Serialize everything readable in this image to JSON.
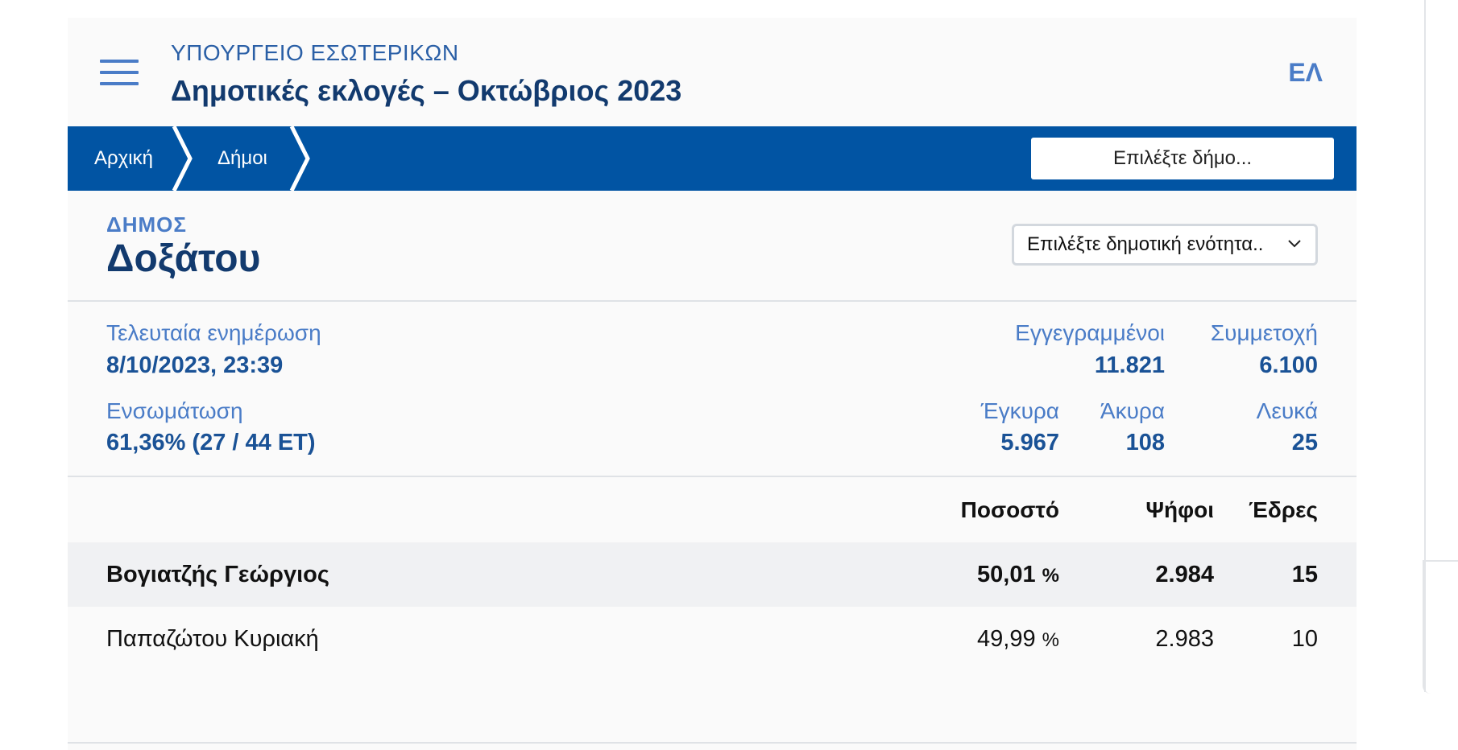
{
  "header": {
    "ministry": "ΥΠΟΥΡΓΕΙΟ ΕΣΩΤΕΡΙΚΩΝ",
    "title": "Δημοτικές εκλογές – Οκτώβριος 2023",
    "lang": "ΕΛ"
  },
  "nav": {
    "breadcrumbs": [
      "Αρχική",
      "Δήμοι"
    ],
    "search_placeholder": "Επιλέξτε δήμο..."
  },
  "municipality": {
    "label": "ΔΗΜΟΣ",
    "name": "Δοξάτου",
    "unit_select": "Επιλέξτε δημοτική ενότητα.."
  },
  "stats": {
    "last_update_label": "Τελευταία ενημέρωση",
    "last_update": "8/10/2023, 23:39",
    "integration_label": "Ενσωμάτωση",
    "integration": "61,36% (27 / 44 ΕΤ)",
    "registered_label": "Εγγεγραμμένοι",
    "registered": "11.821",
    "turnout_label": "Συμμετοχή",
    "turnout": "6.100",
    "valid_label": "Έγκυρα",
    "valid": "5.967",
    "invalid_label": "Άκυρα",
    "invalid": "108",
    "blank_label": "Λευκά",
    "blank": "25"
  },
  "results": {
    "headers": {
      "percent": "Ποσοστό",
      "votes": "Ψήφοι",
      "seats": "Έδρες"
    },
    "pct_sign": "%",
    "rows": [
      {
        "candidate": "Βογιατζής Γεώργιος",
        "percent": "50,01",
        "votes": "2.984",
        "seats": "15"
      },
      {
        "candidate": "Παπαζώτου Κυριακή",
        "percent": "49,99",
        "votes": "2.983",
        "seats": "10"
      }
    ]
  },
  "colors": {
    "primary_blue": "#0154a3",
    "dark_navy": "#123a6e",
    "accent_blue": "#4a7cc7",
    "page_bg": "#fafafa",
    "highlight_row": "#f0f1f3"
  }
}
